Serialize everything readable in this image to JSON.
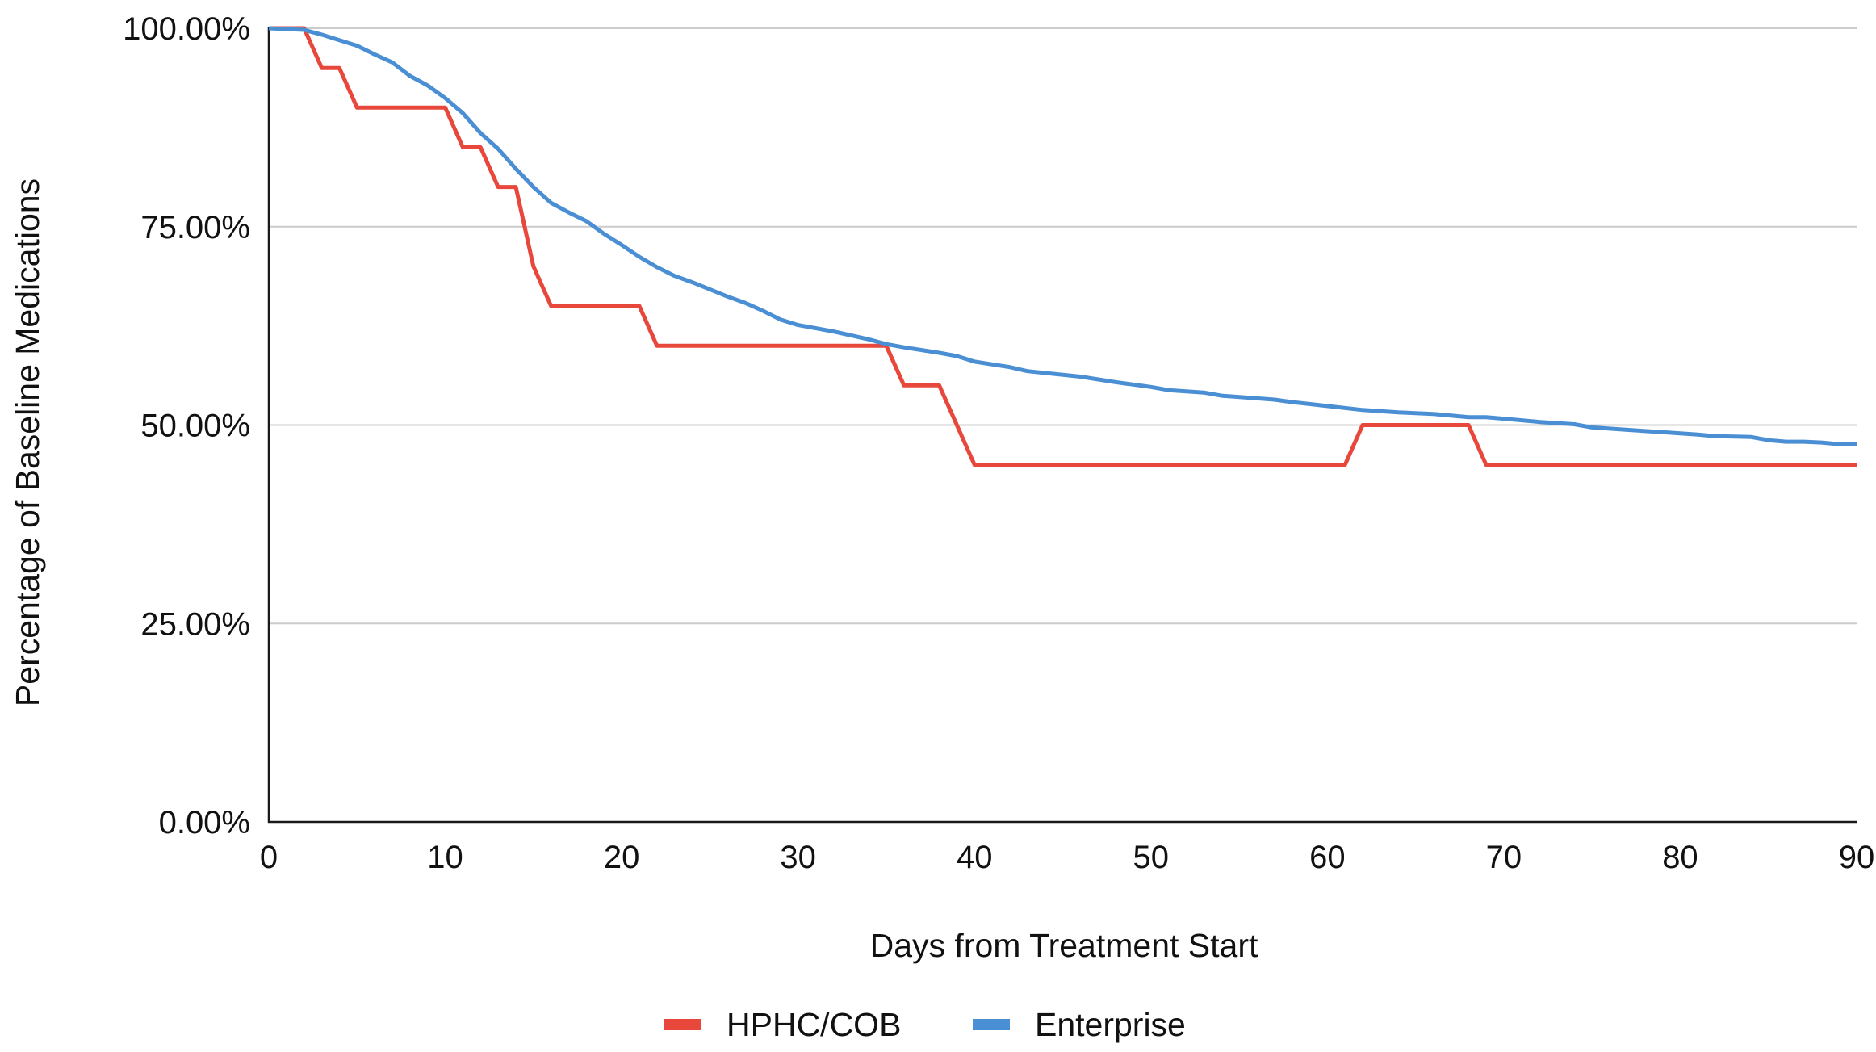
{
  "chart_data": {
    "type": "line",
    "title": "",
    "xlabel": "Days from Treatment Start",
    "ylabel": "Percentage of Baseline Medications",
    "xlim": [
      0,
      90
    ],
    "ylim": [
      0,
      100
    ],
    "x_ticks": [
      0,
      10,
      20,
      30,
      40,
      50,
      60,
      70,
      80,
      90
    ],
    "x_tick_labels": [
      "0",
      "10",
      "20",
      "30",
      "40",
      "50",
      "60",
      "70",
      "80",
      "90"
    ],
    "y_ticks": [
      0,
      25,
      50,
      75,
      100
    ],
    "y_tick_labels": [
      "0.00%",
      "25.00%",
      "50.00%",
      "75.00%",
      "100.00%"
    ],
    "grid": "horizontal",
    "legend_position": "bottom-center",
    "series": [
      {
        "name": "HPHC/COB",
        "color": "#e8483c",
        "points": [
          [
            0,
            100
          ],
          [
            2,
            100
          ],
          [
            3,
            95
          ],
          [
            4,
            95
          ],
          [
            5,
            90
          ],
          [
            10,
            90
          ],
          [
            11,
            85
          ],
          [
            12,
            85
          ],
          [
            13,
            80
          ],
          [
            14,
            80
          ],
          [
            15,
            70
          ],
          [
            16,
            65
          ],
          [
            21,
            65
          ],
          [
            22,
            60
          ],
          [
            35,
            60
          ],
          [
            36,
            55
          ],
          [
            38,
            55
          ],
          [
            40,
            45
          ],
          [
            61,
            45
          ],
          [
            62,
            50
          ],
          [
            68,
            50
          ],
          [
            69,
            45
          ],
          [
            90,
            45
          ]
        ]
      },
      {
        "name": "Enterprise",
        "color": "#4a8fd3",
        "points": [
          [
            0,
            100
          ],
          [
            2,
            99.8
          ],
          [
            3,
            99.2
          ],
          [
            4,
            98.5
          ],
          [
            5,
            97.8
          ],
          [
            6,
            96.7
          ],
          [
            7,
            95.7
          ],
          [
            8,
            94.0
          ],
          [
            9,
            92.8
          ],
          [
            10,
            91.2
          ],
          [
            11,
            89.3
          ],
          [
            12,
            86.8
          ],
          [
            13,
            84.8
          ],
          [
            14,
            82.3
          ],
          [
            15,
            80.0
          ],
          [
            16,
            78.0
          ],
          [
            17,
            76.8
          ],
          [
            18,
            75.7
          ],
          [
            19,
            74.1
          ],
          [
            20,
            72.7
          ],
          [
            21,
            71.2
          ],
          [
            22,
            69.9
          ],
          [
            23,
            68.8
          ],
          [
            24,
            68.0
          ],
          [
            25,
            67.1
          ],
          [
            26,
            66.2
          ],
          [
            27,
            65.4
          ],
          [
            28,
            64.4
          ],
          [
            29,
            63.3
          ],
          [
            30,
            62.6
          ],
          [
            32,
            61.8
          ],
          [
            34,
            60.8
          ],
          [
            35,
            60.2
          ],
          [
            36,
            59.8
          ],
          [
            38,
            59.1
          ],
          [
            39,
            58.7
          ],
          [
            40,
            58.0
          ],
          [
            42,
            57.3
          ],
          [
            43,
            56.8
          ],
          [
            46,
            56.1
          ],
          [
            48,
            55.4
          ],
          [
            50,
            54.8
          ],
          [
            51,
            54.4
          ],
          [
            53,
            54.1
          ],
          [
            54,
            53.7
          ],
          [
            57,
            53.2
          ],
          [
            58,
            52.9
          ],
          [
            60,
            52.4
          ],
          [
            62,
            51.9
          ],
          [
            64,
            51.6
          ],
          [
            66,
            51.4
          ],
          [
            68,
            51.0
          ],
          [
            69,
            51.0
          ],
          [
            70,
            50.8
          ],
          [
            72,
            50.4
          ],
          [
            74,
            50.1
          ],
          [
            75,
            49.7
          ],
          [
            77,
            49.4
          ],
          [
            79,
            49.1
          ],
          [
            81,
            48.8
          ],
          [
            82,
            48.6
          ],
          [
            84,
            48.5
          ],
          [
            85,
            48.1
          ],
          [
            86,
            47.9
          ],
          [
            87,
            47.9
          ],
          [
            88,
            47.8
          ],
          [
            89,
            47.6
          ],
          [
            90,
            47.6
          ]
        ]
      }
    ]
  }
}
